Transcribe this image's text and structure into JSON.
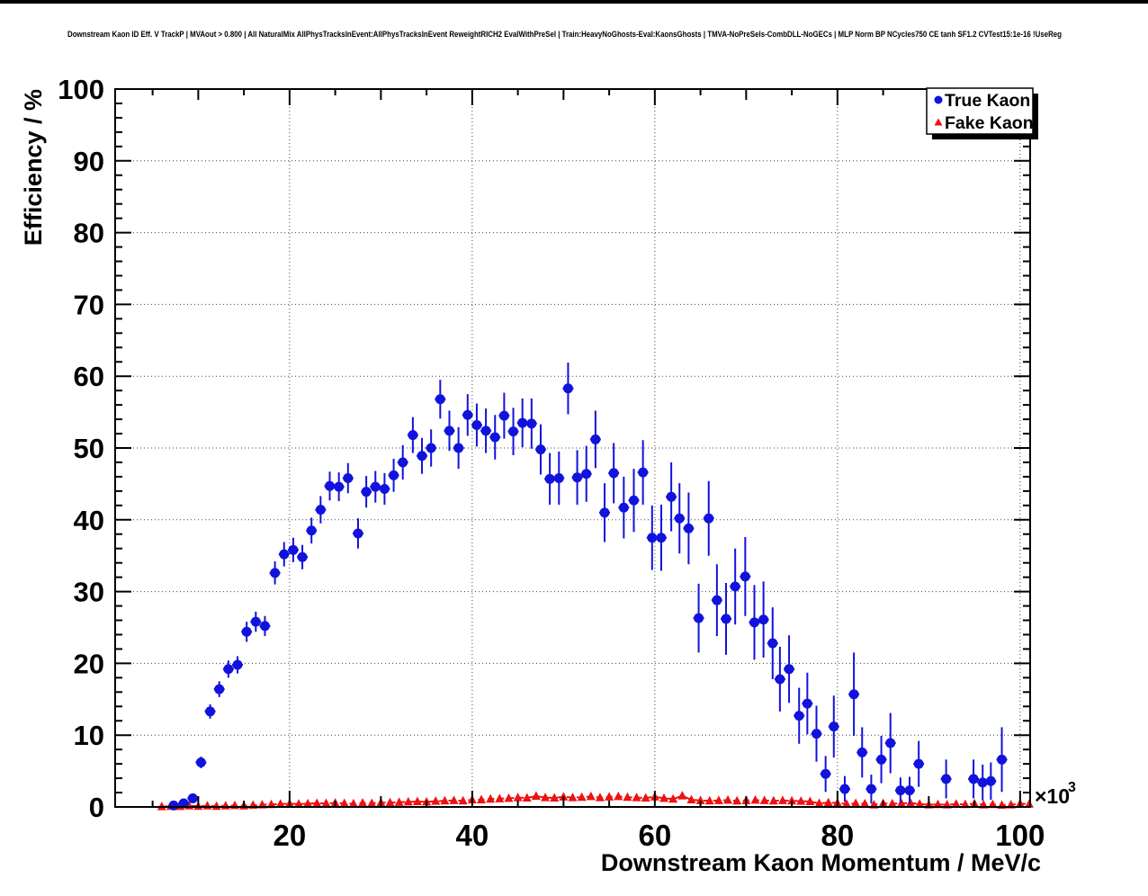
{
  "title": "Downstream Kaon ID Eff. V TrackP | MVAout > 0.800 | All NaturalMix AllPhysTracksInEvent:AllPhysTracksInEvent ReweightRICH2 EvalWithPreSel | Train:HeavyNoGhosts-Eval:KaonsGhosts | TMVA-NoPreSels-CombDLL-NoGECs | MLP Norm BP NCycles750 CE tanh SF1.2 CVTest15:1e-16 !UseReg",
  "colors": {
    "true_kaon": "#1212dd",
    "fake_kaon": "#ee1111",
    "axis": "#000000",
    "grid": "#444444",
    "background": "#ffffff"
  },
  "chart_data": {
    "type": "scatter",
    "xlabel": "Downstream Kaon Momentum / MeV/c",
    "ylabel": "Efficiency / %",
    "x_multiplier_base": "×10",
    "x_multiplier_exponent": "3",
    "xlim": [
      0.9,
      101.1
    ],
    "ylim": [
      0,
      100
    ],
    "grid": "dotted",
    "x_major_ticks": [
      20,
      40,
      60,
      80,
      100
    ],
    "x_tick_labels": [
      "20",
      "40",
      "60",
      "80",
      "100"
    ],
    "y_major_ticks": [
      0,
      10,
      20,
      30,
      40,
      50,
      60,
      70,
      80,
      90,
      100
    ],
    "y_tick_labels": [
      "0",
      "10",
      "20",
      "30",
      "40",
      "50",
      "60",
      "70",
      "80",
      "90",
      "100"
    ],
    "x_minor_step": 5,
    "y_minor_step": 2,
    "legend": {
      "position": "top-right",
      "entries": [
        {
          "label": "True Kaon",
          "marker": "circle",
          "color": "#1212dd"
        },
        {
          "label": "Fake Kaon",
          "marker": "triangle",
          "color": "#ee1111"
        }
      ]
    },
    "series": [
      {
        "name": "True Kaon",
        "marker": "circle",
        "color": "#1212dd",
        "x_half_bin": 0.5,
        "points": [
          [
            7.3,
            0.2,
            0.15
          ],
          [
            8.4,
            0.5,
            0.25
          ],
          [
            9.4,
            1.2,
            0.4
          ],
          [
            10.3,
            6.2,
            0.8
          ],
          [
            11.3,
            13.3,
            1.0
          ],
          [
            12.3,
            16.4,
            1.1
          ],
          [
            13.3,
            19.2,
            1.2
          ],
          [
            14.3,
            19.8,
            1.2
          ],
          [
            15.3,
            24.4,
            1.4
          ],
          [
            16.3,
            25.8,
            1.4
          ],
          [
            17.3,
            25.2,
            1.4
          ],
          [
            18.4,
            32.6,
            1.6
          ],
          [
            19.4,
            35.2,
            1.7
          ],
          [
            20.4,
            35.8,
            1.7
          ],
          [
            21.4,
            34.8,
            1.7
          ],
          [
            22.4,
            38.5,
            1.8
          ],
          [
            23.4,
            41.4,
            1.9
          ],
          [
            24.4,
            44.7,
            2.0
          ],
          [
            25.4,
            44.6,
            2.0
          ],
          [
            26.4,
            45.8,
            2.1
          ],
          [
            27.5,
            38.1,
            2.1
          ],
          [
            28.4,
            43.9,
            2.2
          ],
          [
            29.4,
            44.6,
            2.2
          ],
          [
            30.4,
            44.3,
            2.2
          ],
          [
            31.4,
            46.2,
            2.3
          ],
          [
            32.4,
            48.0,
            2.4
          ],
          [
            33.5,
            51.8,
            2.5
          ],
          [
            34.5,
            48.9,
            2.5
          ],
          [
            35.5,
            50.0,
            2.6
          ],
          [
            36.5,
            56.8,
            2.7
          ],
          [
            37.5,
            52.4,
            2.8
          ],
          [
            38.5,
            50.0,
            2.9
          ],
          [
            39.5,
            54.6,
            2.9
          ],
          [
            40.5,
            53.2,
            3.0
          ],
          [
            41.5,
            52.4,
            3.1
          ],
          [
            42.5,
            51.5,
            3.1
          ],
          [
            43.5,
            54.5,
            3.2
          ],
          [
            44.5,
            52.3,
            3.3
          ],
          [
            45.5,
            53.5,
            3.4
          ],
          [
            46.5,
            53.4,
            3.5
          ],
          [
            47.5,
            49.8,
            3.5
          ],
          [
            48.5,
            45.7,
            3.6
          ],
          [
            49.5,
            45.8,
            3.7
          ],
          [
            50.5,
            58.3,
            3.6
          ],
          [
            51.5,
            45.9,
            3.8
          ],
          [
            52.5,
            46.4,
            3.9
          ],
          [
            53.5,
            51.2,
            4.0
          ],
          [
            54.5,
            41.0,
            4.1
          ],
          [
            55.5,
            46.5,
            4.2
          ],
          [
            56.6,
            41.7,
            4.3
          ],
          [
            57.7,
            42.7,
            4.4
          ],
          [
            58.7,
            46.6,
            4.5
          ],
          [
            59.7,
            37.5,
            4.5
          ],
          [
            60.7,
            37.5,
            4.6
          ],
          [
            61.8,
            43.2,
            4.8
          ],
          [
            62.7,
            40.2,
            4.9
          ],
          [
            63.7,
            38.8,
            5.0
          ],
          [
            64.8,
            26.3,
            4.8
          ],
          [
            65.9,
            40.2,
            5.2
          ],
          [
            66.8,
            28.8,
            5.0
          ],
          [
            67.8,
            26.2,
            5.0
          ],
          [
            68.8,
            30.7,
            5.3
          ],
          [
            69.9,
            32.1,
            5.5
          ],
          [
            70.9,
            25.7,
            5.2
          ],
          [
            71.9,
            26.1,
            5.3
          ],
          [
            72.9,
            22.8,
            5.0
          ],
          [
            73.7,
            17.8,
            4.5
          ],
          [
            74.7,
            19.2,
            4.7
          ],
          [
            75.8,
            12.7,
            3.9
          ],
          [
            76.7,
            14.4,
            4.3
          ],
          [
            77.7,
            10.2,
            3.9
          ],
          [
            78.7,
            4.6,
            2.5
          ],
          [
            79.6,
            11.2,
            4.3
          ],
          [
            80.8,
            2.5,
            1.8
          ],
          [
            81.8,
            15.7,
            5.8
          ],
          [
            82.7,
            7.6,
            3.5
          ],
          [
            83.7,
            2.5,
            2.0
          ],
          [
            84.8,
            6.6,
            3.3
          ],
          [
            85.8,
            8.9,
            4.2
          ],
          [
            86.9,
            2.3,
            1.8
          ],
          [
            87.9,
            2.3,
            1.9
          ],
          [
            88.9,
            6.0,
            3.2
          ],
          [
            91.9,
            3.9,
            2.7
          ],
          [
            94.9,
            3.9,
            2.7
          ],
          [
            95.9,
            3.4,
            2.5
          ],
          [
            96.8,
            3.6,
            2.6
          ],
          [
            98.0,
            6.6,
            4.5
          ]
        ]
      },
      {
        "name": "Fake Kaon",
        "marker": "triangle",
        "color": "#ee1111",
        "line": "dashed",
        "x_half_bin": 0.5,
        "points": [
          [
            6,
            0.05
          ],
          [
            7,
            0.1
          ],
          [
            8,
            0.08
          ],
          [
            9,
            0.15
          ],
          [
            10,
            0.1
          ],
          [
            11,
            0.15
          ],
          [
            12,
            0.1
          ],
          [
            13,
            0.15
          ],
          [
            14,
            0.2
          ],
          [
            15,
            0.15
          ],
          [
            16,
            0.25
          ],
          [
            17,
            0.3
          ],
          [
            18,
            0.35
          ],
          [
            19,
            0.4
          ],
          [
            20,
            0.45
          ],
          [
            21,
            0.4
          ],
          [
            22,
            0.45
          ],
          [
            23,
            0.5
          ],
          [
            24,
            0.5
          ],
          [
            25,
            0.55
          ],
          [
            26,
            0.5
          ],
          [
            27,
            0.45
          ],
          [
            28,
            0.55
          ],
          [
            29,
            0.5
          ],
          [
            30,
            0.6
          ],
          [
            31,
            0.6
          ],
          [
            32,
            0.65
          ],
          [
            33,
            0.7
          ],
          [
            34,
            0.75
          ],
          [
            35,
            0.7
          ],
          [
            36,
            0.8
          ],
          [
            37,
            0.85
          ],
          [
            38,
            0.9
          ],
          [
            39,
            0.85
          ],
          [
            40,
            1.0
          ],
          [
            41,
            1.0
          ],
          [
            42,
            1.1
          ],
          [
            43,
            1.15
          ],
          [
            44,
            1.2
          ],
          [
            45,
            1.3
          ],
          [
            46,
            1.25
          ],
          [
            47,
            1.5,
            0.3
          ],
          [
            48,
            1.3
          ],
          [
            49,
            1.25
          ],
          [
            50,
            1.4
          ],
          [
            51,
            1.3
          ],
          [
            52,
            1.35
          ],
          [
            53,
            1.45
          ],
          [
            54,
            1.3
          ],
          [
            55,
            1.4
          ],
          [
            56,
            1.45
          ],
          [
            57,
            1.35
          ],
          [
            58,
            1.3
          ],
          [
            59,
            1.25
          ],
          [
            60,
            1.4
          ],
          [
            61,
            1.2
          ],
          [
            62,
            1.1
          ],
          [
            63,
            1.55,
            0.35
          ],
          [
            64,
            1.0
          ],
          [
            65,
            0.9
          ],
          [
            66,
            0.85
          ],
          [
            67,
            0.9
          ],
          [
            68,
            0.95
          ],
          [
            69,
            0.85
          ],
          [
            70,
            0.9
          ],
          [
            71,
            0.95
          ],
          [
            72,
            0.9
          ],
          [
            73,
            0.85
          ],
          [
            74,
            0.9
          ],
          [
            75,
            0.85
          ],
          [
            76,
            0.8
          ],
          [
            77,
            0.75
          ],
          [
            78,
            0.5
          ],
          [
            79,
            0.6
          ],
          [
            80,
            0.55
          ],
          [
            81,
            0.4
          ],
          [
            82,
            0.5
          ],
          [
            83,
            0.45
          ],
          [
            84,
            0.3
          ],
          [
            85,
            0.5
          ],
          [
            86,
            0.45
          ],
          [
            87,
            0.5
          ],
          [
            88,
            0.55
          ],
          [
            89,
            0.4
          ],
          [
            90,
            0.3
          ],
          [
            91,
            0.35
          ],
          [
            92,
            0.3
          ],
          [
            93,
            0.4
          ],
          [
            94,
            0.35
          ],
          [
            95,
            0.45
          ],
          [
            96,
            0.3
          ],
          [
            97,
            0.35
          ],
          [
            98,
            0.25
          ],
          [
            99,
            0.3
          ],
          [
            100,
            0.45
          ],
          [
            101,
            0.4
          ]
        ]
      }
    ]
  }
}
